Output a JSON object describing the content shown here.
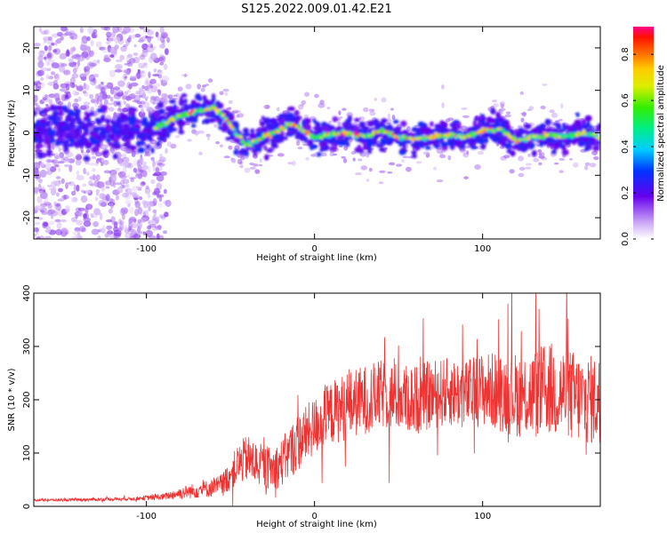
{
  "title": "S125.2022.009.01.42.E21",
  "chart_data": [
    {
      "type": "heatmap",
      "xlabel": "Height of straight line (km)",
      "ylabel": "Frequency (Hz)",
      "xlim": [
        -167,
        170
      ],
      "ylim": [
        -25,
        25
      ],
      "xticks": [
        -100,
        0,
        100
      ],
      "yticks": [
        -20,
        -10,
        0,
        10,
        20
      ],
      "colorbar": {
        "label": "Normalized spectral amplitude",
        "range": [
          0,
          0.92
        ],
        "ticks": [
          0.0,
          0.2,
          0.4,
          0.6,
          0.8
        ],
        "colormap": "rainbow (white-purple-blue-cyan-green-yellow-red-magenta)"
      },
      "ridge": {
        "description": "dominant frequency track vs height",
        "x": [
          -167,
          -150,
          -130,
          -110,
          -100,
          -90,
          -80,
          -70,
          -60,
          -55,
          -50,
          -45,
          -40,
          -35,
          -30,
          -25,
          -20,
          -15,
          -10,
          -5,
          0,
          10,
          20,
          30,
          40,
          50,
          60,
          70,
          80,
          90,
          100,
          110,
          120,
          130,
          140,
          150,
          160,
          170
        ],
        "y": [
          0,
          1,
          0,
          0.5,
          0,
          2,
          4,
          5,
          6,
          4,
          2,
          -1,
          -3,
          -2,
          -1,
          0,
          1,
          2,
          1.5,
          0,
          -1,
          -0.5,
          0,
          -1,
          0.5,
          -1,
          -1.5,
          -1,
          -0.5,
          -1,
          0.5,
          1,
          -2,
          -1,
          -0.5,
          -1,
          0,
          -1
        ]
      }
    },
    {
      "type": "line",
      "xlabel": "Height of straight line (km)",
      "ylabel": "SNR (10 * v/v)",
      "xlim": [
        -167,
        170
      ],
      "ylim": [
        0,
        400
      ],
      "xticks": [
        -100,
        0,
        100
      ],
      "yticks": [
        0,
        100,
        200,
        300,
        400
      ],
      "color": "#ee3333",
      "series": [
        {
          "x": [
            -167,
            -150,
            -130,
            -110,
            -90,
            -80,
            -70,
            -60,
            -55,
            -50,
            -45,
            -40,
            -35,
            -30,
            -25,
            -20,
            -15,
            -10,
            -5,
            0,
            10,
            20,
            30,
            40,
            50,
            60,
            70,
            80,
            90,
            100,
            110,
            120,
            130,
            140,
            150,
            160,
            170
          ],
          "y": [
            12,
            12,
            13,
            14,
            18,
            25,
            30,
            35,
            40,
            60,
            80,
            90,
            80,
            75,
            70,
            80,
            100,
            120,
            135,
            150,
            175,
            190,
            200,
            210,
            205,
            200,
            210,
            215,
            210,
            220,
            215,
            210,
            210,
            220,
            210,
            200,
            200
          ],
          "spread": [
            5,
            5,
            6,
            6,
            12,
            22,
            30,
            35,
            45,
            60,
            80,
            90,
            85,
            80,
            80,
            90,
            100,
            110,
            110,
            110,
            120,
            130,
            130,
            130,
            130,
            130,
            130,
            130,
            130,
            140,
            150,
            160,
            170,
            180,
            180,
            170,
            170
          ]
        }
      ]
    }
  ]
}
